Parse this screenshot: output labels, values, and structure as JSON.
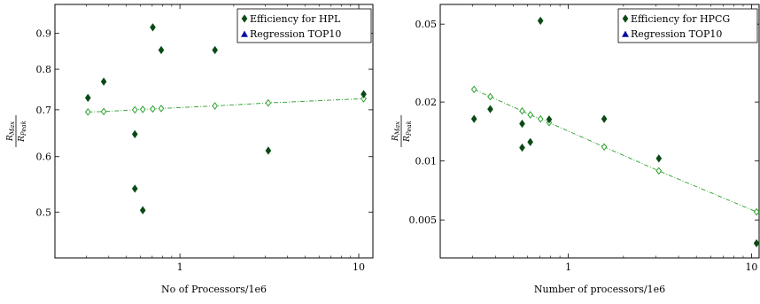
{
  "chart_data": [
    {
      "type": "scatter",
      "title": "",
      "xlabel": "No of Processors/1e6",
      "ylabel_main": "R",
      "ylabel_top_sub": "Max",
      "ylabel_bottom_sub": "Peak",
      "xscale": "log",
      "yscale": "log",
      "xlim": [
        0.2,
        12
      ],
      "ylim": [
        0.43,
        0.99
      ],
      "xticks": [
        1,
        10
      ],
      "yticks": [
        0.5,
        0.6,
        0.7,
        0.8,
        0.9
      ],
      "grid": false,
      "legend_position": "top-right",
      "series": [
        {
          "name": "Efficiency for HPL",
          "marker": "filled-diamond",
          "color": "#0b4a16",
          "points": [
            {
              "x": 0.306,
              "y": 0.728
            },
            {
              "x": 0.375,
              "y": 0.768
            },
            {
              "x": 0.56,
              "y": 0.646
            },
            {
              "x": 0.56,
              "y": 0.54
            },
            {
              "x": 0.62,
              "y": 0.503
            },
            {
              "x": 0.705,
              "y": 0.918
            },
            {
              "x": 0.786,
              "y": 0.852
            },
            {
              "x": 1.57,
              "y": 0.852
            },
            {
              "x": 3.12,
              "y": 0.612
            },
            {
              "x": 10.65,
              "y": 0.737
            }
          ]
        },
        {
          "name": "Regression TOP10",
          "marker": "open-diamond",
          "line_style": "dash-dot",
          "color": "#2ca02c",
          "legend_marker_color": "#0a0aa0",
          "points": [
            {
              "x": 0.306,
              "y": 0.695
            },
            {
              "x": 0.375,
              "y": 0.696
            },
            {
              "x": 0.56,
              "y": 0.7
            },
            {
              "x": 0.62,
              "y": 0.701
            },
            {
              "x": 0.705,
              "y": 0.702
            },
            {
              "x": 0.786,
              "y": 0.703
            },
            {
              "x": 1.57,
              "y": 0.709
            },
            {
              "x": 3.12,
              "y": 0.716
            },
            {
              "x": 10.65,
              "y": 0.726
            }
          ]
        }
      ]
    },
    {
      "type": "scatter",
      "title": "",
      "xlabel": "Number of processors/1e6",
      "ylabel_main": "R",
      "ylabel_top_sub": "Max",
      "ylabel_bottom_sub": "Peak",
      "xscale": "log",
      "yscale": "log",
      "xlim": [
        0.2,
        11
      ],
      "ylim": [
        0.0032,
        0.063
      ],
      "xticks": [
        1,
        10
      ],
      "yticks": [
        0.005,
        0.01,
        0.02,
        0.05
      ],
      "grid": false,
      "legend_position": "top-right",
      "series": [
        {
          "name": "Efficiency for HPCG",
          "marker": "filled-diamond",
          "color": "#0b4a16",
          "points": [
            {
              "x": 0.306,
              "y": 0.0164
            },
            {
              "x": 0.375,
              "y": 0.0184
            },
            {
              "x": 0.56,
              "y": 0.0155
            },
            {
              "x": 0.56,
              "y": 0.0117
            },
            {
              "x": 0.62,
              "y": 0.0125
            },
            {
              "x": 0.705,
              "y": 0.052
            },
            {
              "x": 0.786,
              "y": 0.0163
            },
            {
              "x": 1.57,
              "y": 0.0164
            },
            {
              "x": 3.12,
              "y": 0.0103
            },
            {
              "x": 10.65,
              "y": 0.0038
            }
          ]
        },
        {
          "name": "Regression TOP10",
          "marker": "open-diamond",
          "line_style": "dash-dot",
          "color": "#2ca02c",
          "legend_marker_color": "#0a0aa0",
          "points": [
            {
              "x": 0.306,
              "y": 0.0232
            },
            {
              "x": 0.375,
              "y": 0.0213
            },
            {
              "x": 0.56,
              "y": 0.018
            },
            {
              "x": 0.62,
              "y": 0.0172
            },
            {
              "x": 0.705,
              "y": 0.0164
            },
            {
              "x": 0.786,
              "y": 0.0157
            },
            {
              "x": 1.57,
              "y": 0.0118
            },
            {
              "x": 3.12,
              "y": 0.0089
            },
            {
              "x": 10.65,
              "y": 0.0055
            }
          ]
        }
      ]
    }
  ]
}
